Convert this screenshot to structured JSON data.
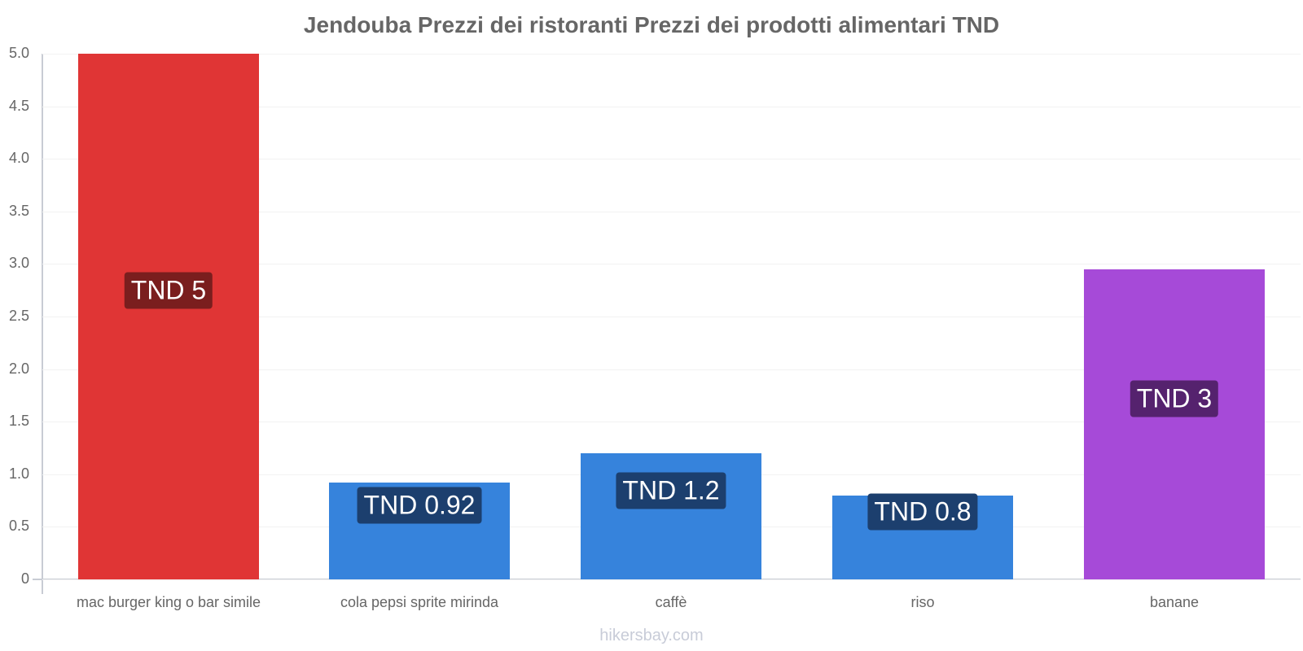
{
  "title": "Jendouba Prezzi dei ristoranti Prezzi dei prodotti alimentari TND",
  "watermark": "hikersbay.com",
  "y_ticks": [
    "0",
    "0.5",
    "1.0",
    "1.5",
    "2.0",
    "2.5",
    "3.0",
    "3.5",
    "4.0",
    "4.5",
    "5.0"
  ],
  "bars": [
    {
      "category": "mac burger king o bar simile",
      "value": 5,
      "label": "TND 5",
      "color": "#e03535",
      "label_bg": "#7a1e1e"
    },
    {
      "category": "cola pepsi sprite mirinda",
      "value": 0.92,
      "label": "TND 0.92",
      "color": "#3683dc",
      "label_bg": "#1c3f6e"
    },
    {
      "category": "caffè",
      "value": 1.2,
      "label": "TND 1.2",
      "color": "#3683dc",
      "label_bg": "#1c3f6e"
    },
    {
      "category": "riso",
      "value": 0.8,
      "label": "TND 0.8",
      "color": "#3683dc",
      "label_bg": "#1c3f6e"
    },
    {
      "category": "banane",
      "value": 2.95,
      "label": "TND 3",
      "color": "#a64ad8",
      "label_bg": "#55226e"
    }
  ],
  "chart_data": {
    "type": "bar",
    "title": "Jendouba Prezzi dei ristoranti Prezzi dei prodotti alimentari TND",
    "categories": [
      "mac burger king o bar simile",
      "cola pepsi sprite mirinda",
      "caffè",
      "riso",
      "banane"
    ],
    "values": [
      5,
      0.92,
      1.2,
      0.8,
      2.95
    ],
    "data_labels": [
      "TND 5",
      "TND 0.92",
      "TND 1.2",
      "TND 0.8",
      "TND 3"
    ],
    "colors": [
      "#e03535",
      "#3683dc",
      "#3683dc",
      "#3683dc",
      "#a64ad8"
    ],
    "xlabel": "",
    "ylabel": "",
    "ylim": [
      0,
      5
    ],
    "y_ticks": [
      0,
      0.5,
      1.0,
      1.5,
      2.0,
      2.5,
      3.0,
      3.5,
      4.0,
      4.5,
      5.0
    ],
    "grid": true,
    "legend": "none"
  }
}
